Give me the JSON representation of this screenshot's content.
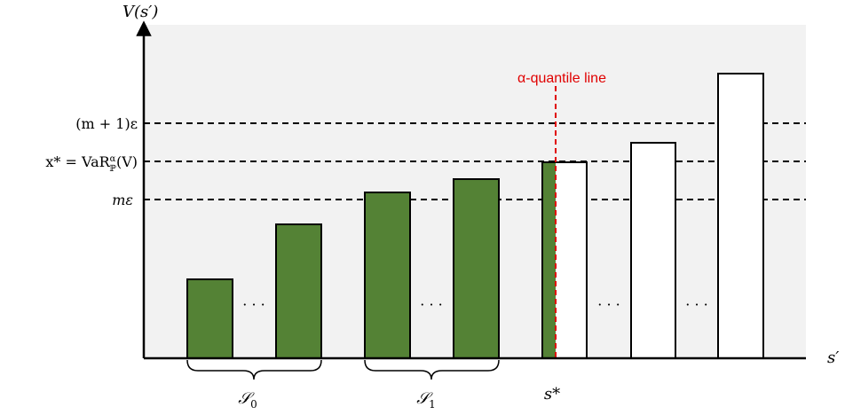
{
  "axes": {
    "y_label": "V(s′)",
    "x_label": "s′"
  },
  "levels": {
    "upper": "(m + 1)ε",
    "var_lhs": "x* = VaR",
    "var_sup": "α",
    "var_sub": "ℙ",
    "var_arg": "(V)",
    "lower": "mε"
  },
  "quantile_label": "α-quantile line",
  "ellipsis": "· · ·",
  "groups": {
    "s0_base": "𝒮",
    "s0_sub": "0",
    "s1_base": "𝒮",
    "s1_sub": "1",
    "s_star": "s*"
  },
  "colors": {
    "filled_bar": "#548235",
    "empty_bar": "#ffffff",
    "quantile_line": "#e00000",
    "plot_background": "#f2f2f2"
  },
  "bars": [
    {
      "fill": "filled",
      "height_rank": 1
    },
    {
      "fill": "filled",
      "height_rank": 2
    },
    {
      "fill": "filled",
      "height_rank": 3
    },
    {
      "fill": "filled",
      "height_rank": 4
    },
    {
      "fill": "split",
      "height_rank": 5
    },
    {
      "fill": "empty",
      "height_rank": 6
    },
    {
      "fill": "empty",
      "height_rank": 7
    }
  ]
}
